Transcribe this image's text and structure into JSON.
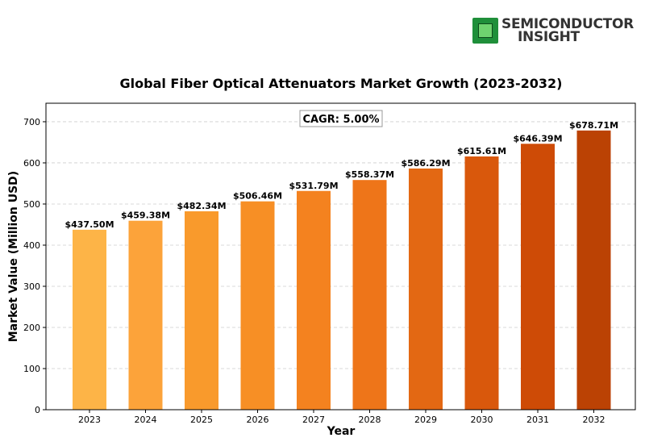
{
  "brand": {
    "line1": "SEMICONDUCTOR",
    "line2": "INSIGHT",
    "icon": "chip-icon",
    "color": "#1f8f3a"
  },
  "chart_data": {
    "type": "bar",
    "title": "Global Fiber Optical Attenuators Market Growth (2023-2032)",
    "xlabel": "Year",
    "ylabel": "Market Value (Million USD)",
    "categories": [
      "2023",
      "2024",
      "2025",
      "2026",
      "2027",
      "2028",
      "2029",
      "2030",
      "2031",
      "2032"
    ],
    "values": [
      437.5,
      459.38,
      482.34,
      506.46,
      531.79,
      558.37,
      586.29,
      615.61,
      646.39,
      678.71
    ],
    "data_labels": [
      "$437.50M",
      "$459.38M",
      "$482.34M",
      "$506.46M",
      "$531.79M",
      "$558.37M",
      "$586.29M",
      "$615.61M",
      "$646.39M",
      "$678.71M"
    ],
    "ylim": [
      0,
      745
    ],
    "yticks": [
      0,
      100,
      200,
      300,
      400,
      500,
      600,
      700
    ],
    "grid": "horizontal-dashed",
    "annotation": "CAGR: 5.00%",
    "colors": [
      "#fdb447",
      "#fca33a",
      "#f99a2c",
      "#f78f25",
      "#f4821f",
      "#ee7519",
      "#e36813",
      "#d9580c",
      "#ce4b06",
      "#bb4204"
    ]
  }
}
